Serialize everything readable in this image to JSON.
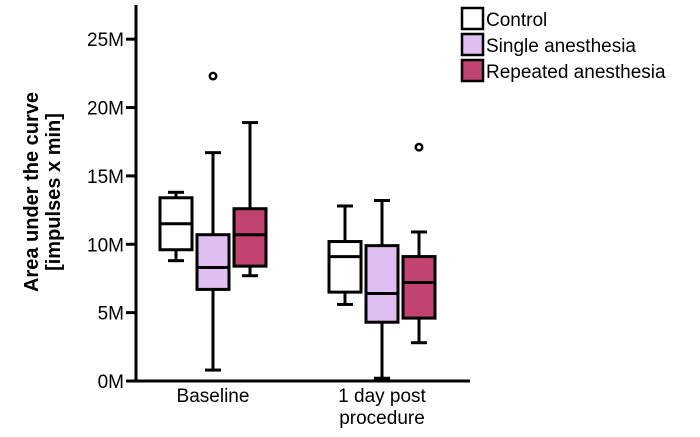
{
  "chart_data": {
    "type": "box",
    "ylabel_lines": [
      "Area under the curve",
      "[impulses x min]"
    ],
    "yticks": [
      {
        "value": 0,
        "label": "0M"
      },
      {
        "value": 5000000,
        "label": "5M"
      },
      {
        "value": 10000000,
        "label": "10M"
      },
      {
        "value": 15000000,
        "label": "15M"
      },
      {
        "value": 20000000,
        "label": "20M"
      },
      {
        "value": 25000000,
        "label": "25M"
      }
    ],
    "ylim": [
      0,
      27500000
    ],
    "categories": [
      {
        "name": "Baseline",
        "label_lines": [
          "Baseline"
        ]
      },
      {
        "name": "1 day post procedure",
        "label_lines": [
          "1 day post",
          "procedure"
        ]
      }
    ],
    "series": [
      {
        "name": "Control",
        "color": "#ffffff",
        "boxes": [
          {
            "min": 8800000,
            "q1": 9600000,
            "median": 11500000,
            "q3": 13400000,
            "max": 13800000,
            "outliers": []
          },
          {
            "min": 5600000,
            "q1": 6500000,
            "median": 9100000,
            "q3": 10200000,
            "max": 12800000,
            "outliers": []
          }
        ]
      },
      {
        "name": "Single anesthesia",
        "color": "#dfbef1",
        "boxes": [
          {
            "min": 800000,
            "q1": 6700000,
            "median": 8300000,
            "q3": 10700000,
            "max": 16700000,
            "outliers": [
              22300000
            ]
          },
          {
            "min": 200000,
            "q1": 4300000,
            "median": 6400000,
            "q3": 9900000,
            "max": 13200000,
            "outliers": []
          }
        ]
      },
      {
        "name": "Repeated anesthesia",
        "color": "#c0446f",
        "boxes": [
          {
            "min": 7700000,
            "q1": 8400000,
            "median": 10700000,
            "q3": 12600000,
            "max": 18900000,
            "outliers": []
          },
          {
            "min": 2800000,
            "q1": 4600000,
            "median": 7200000,
            "q3": 9100000,
            "max": 10900000,
            "outliers": [
              17100000
            ]
          }
        ]
      }
    ]
  }
}
